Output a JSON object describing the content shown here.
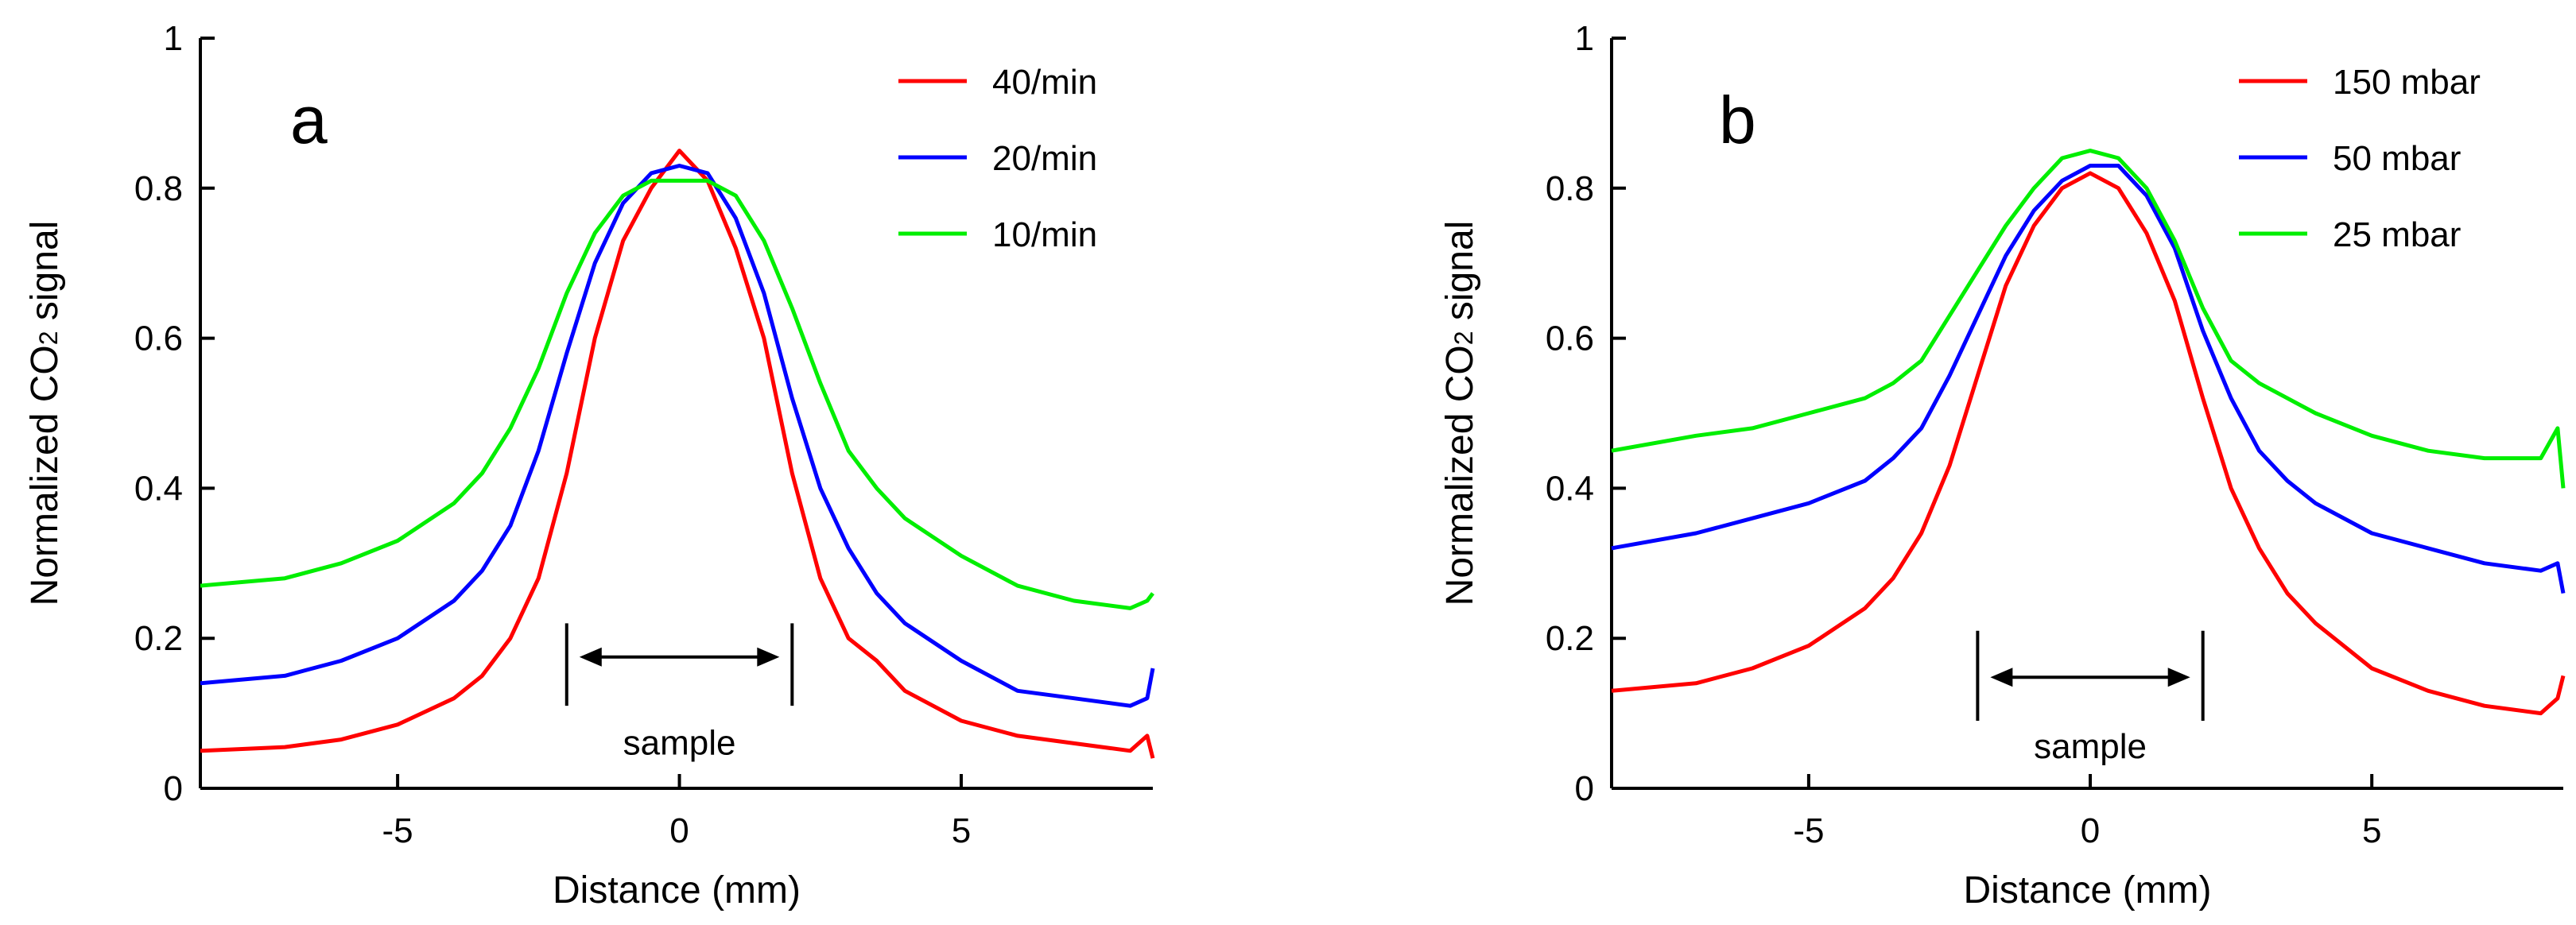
{
  "chart_data": [
    {
      "type": "line",
      "panel_label": "a",
      "xlabel": "Distance (mm)",
      "ylabel_prefix": "Normalized CO",
      "ylabel_subscript": "2",
      "ylabel_suffix": " signal",
      "xlim": [
        -8.5,
        8.4
      ],
      "ylim": [
        0,
        1
      ],
      "xticks": [
        -5,
        0,
        5
      ],
      "xtick_labels": [
        "-5",
        "0",
        "5"
      ],
      "yticks": [
        0,
        0.2,
        0.4,
        0.6,
        0.8,
        1
      ],
      "ytick_labels": [
        "0",
        "0.2",
        "0.4",
        "0.6",
        "0.8",
        "1"
      ],
      "legend_position": "top-right",
      "annotation": {
        "text": "sample",
        "x_start": -2,
        "x_end": 2,
        "y_top": 0.22,
        "y_bottom": 0.11,
        "arrow_y": 0.175,
        "text_y": 0.06
      },
      "series": [
        {
          "name": "40/min",
          "color": "#ff0000",
          "x": [
            -8.5,
            -7,
            -6,
            -5,
            -4,
            -3.5,
            -3,
            -2.5,
            -2,
            -1.5,
            -1,
            -0.5,
            0,
            0.5,
            1,
            1.5,
            2,
            2.5,
            3,
            3.5,
            4,
            5,
            6,
            7,
            8,
            8.3,
            8.4
          ],
          "y": [
            0.05,
            0.055,
            0.065,
            0.085,
            0.12,
            0.15,
            0.2,
            0.28,
            0.42,
            0.6,
            0.73,
            0.8,
            0.85,
            0.81,
            0.72,
            0.6,
            0.42,
            0.28,
            0.2,
            0.17,
            0.13,
            0.09,
            0.07,
            0.06,
            0.05,
            0.07,
            0.04
          ]
        },
        {
          "name": "20/min",
          "color": "#0000ff",
          "x": [
            -8.5,
            -7,
            -6,
            -5,
            -4,
            -3.5,
            -3,
            -2.5,
            -2,
            -1.5,
            -1,
            -0.5,
            0,
            0.5,
            1,
            1.5,
            2,
            2.5,
            3,
            3.5,
            4,
            5,
            6,
            7,
            8,
            8.3,
            8.4
          ],
          "y": [
            0.14,
            0.15,
            0.17,
            0.2,
            0.25,
            0.29,
            0.35,
            0.45,
            0.58,
            0.7,
            0.78,
            0.82,
            0.83,
            0.82,
            0.76,
            0.66,
            0.52,
            0.4,
            0.32,
            0.26,
            0.22,
            0.17,
            0.13,
            0.12,
            0.11,
            0.12,
            0.16
          ]
        },
        {
          "name": "10/min",
          "color": "#00ee00",
          "x": [
            -8.5,
            -7,
            -6,
            -5,
            -4,
            -3.5,
            -3,
            -2.5,
            -2,
            -1.5,
            -1,
            -0.5,
            0,
            0.5,
            1,
            1.5,
            2,
            2.5,
            3,
            3.5,
            4,
            5,
            6,
            7,
            8,
            8.3,
            8.4
          ],
          "y": [
            0.27,
            0.28,
            0.3,
            0.33,
            0.38,
            0.42,
            0.48,
            0.56,
            0.66,
            0.74,
            0.79,
            0.81,
            0.81,
            0.81,
            0.79,
            0.73,
            0.64,
            0.54,
            0.45,
            0.4,
            0.36,
            0.31,
            0.27,
            0.25,
            0.24,
            0.25,
            0.26
          ]
        }
      ]
    },
    {
      "type": "line",
      "panel_label": "b",
      "xlabel": "Distance (mm)",
      "ylabel_prefix": "Normalized CO",
      "ylabel_subscript": "2",
      "ylabel_suffix": " signal",
      "xlim": [
        -8.5,
        8.4
      ],
      "ylim": [
        0,
        1
      ],
      "xticks": [
        -5,
        0,
        5
      ],
      "xtick_labels": [
        "-5",
        "0",
        "5"
      ],
      "yticks": [
        0,
        0.2,
        0.4,
        0.6,
        0.8,
        1
      ],
      "ytick_labels": [
        "0",
        "0.2",
        "0.4",
        "0.6",
        "0.8",
        "1"
      ],
      "legend_position": "top-right",
      "annotation": {
        "text": "sample",
        "x_start": -2,
        "x_end": 2,
        "y_top": 0.21,
        "y_bottom": 0.09,
        "arrow_y": 0.148,
        "text_y": 0.055
      },
      "series": [
        {
          "name": "150 mbar",
          "color": "#ff0000",
          "x": [
            -8.5,
            -7,
            -6,
            -5,
            -4,
            -3.5,
            -3,
            -2.5,
            -2,
            -1.5,
            -1,
            -0.5,
            0,
            0.5,
            1,
            1.5,
            2,
            2.5,
            3,
            3.5,
            4,
            5,
            6,
            7,
            8,
            8.3,
            8.4
          ],
          "y": [
            0.13,
            0.14,
            0.16,
            0.19,
            0.24,
            0.28,
            0.34,
            0.43,
            0.55,
            0.67,
            0.75,
            0.8,
            0.82,
            0.8,
            0.74,
            0.65,
            0.52,
            0.4,
            0.32,
            0.26,
            0.22,
            0.16,
            0.13,
            0.11,
            0.1,
            0.12,
            0.15
          ]
        },
        {
          "name": "50 mbar",
          "color": "#0000ff",
          "x": [
            -8.5,
            -7,
            -6,
            -5,
            -4,
            -3.5,
            -3,
            -2.5,
            -2,
            -1.5,
            -1,
            -0.5,
            0,
            0.5,
            1,
            1.5,
            2,
            2.5,
            3,
            3.5,
            4,
            5,
            6,
            7,
            8,
            8.3,
            8.4
          ],
          "y": [
            0.32,
            0.34,
            0.36,
            0.38,
            0.41,
            0.44,
            0.48,
            0.55,
            0.63,
            0.71,
            0.77,
            0.81,
            0.83,
            0.83,
            0.79,
            0.72,
            0.61,
            0.52,
            0.45,
            0.41,
            0.38,
            0.34,
            0.32,
            0.3,
            0.29,
            0.3,
            0.26
          ]
        },
        {
          "name": "25 mbar",
          "color": "#00ee00",
          "x": [
            -8.5,
            -7,
            -6,
            -5,
            -4,
            -3.5,
            -3,
            -2.5,
            -2,
            -1.5,
            -1,
            -0.5,
            0,
            0.5,
            1,
            1.5,
            2,
            2.5,
            3,
            3.5,
            4,
            5,
            6,
            7,
            8,
            8.3,
            8.4
          ],
          "y": [
            0.45,
            0.47,
            0.48,
            0.5,
            0.52,
            0.54,
            0.57,
            0.63,
            0.69,
            0.75,
            0.8,
            0.84,
            0.85,
            0.84,
            0.8,
            0.73,
            0.64,
            0.57,
            0.54,
            0.52,
            0.5,
            0.47,
            0.45,
            0.44,
            0.44,
            0.48,
            0.4
          ]
        }
      ]
    }
  ]
}
